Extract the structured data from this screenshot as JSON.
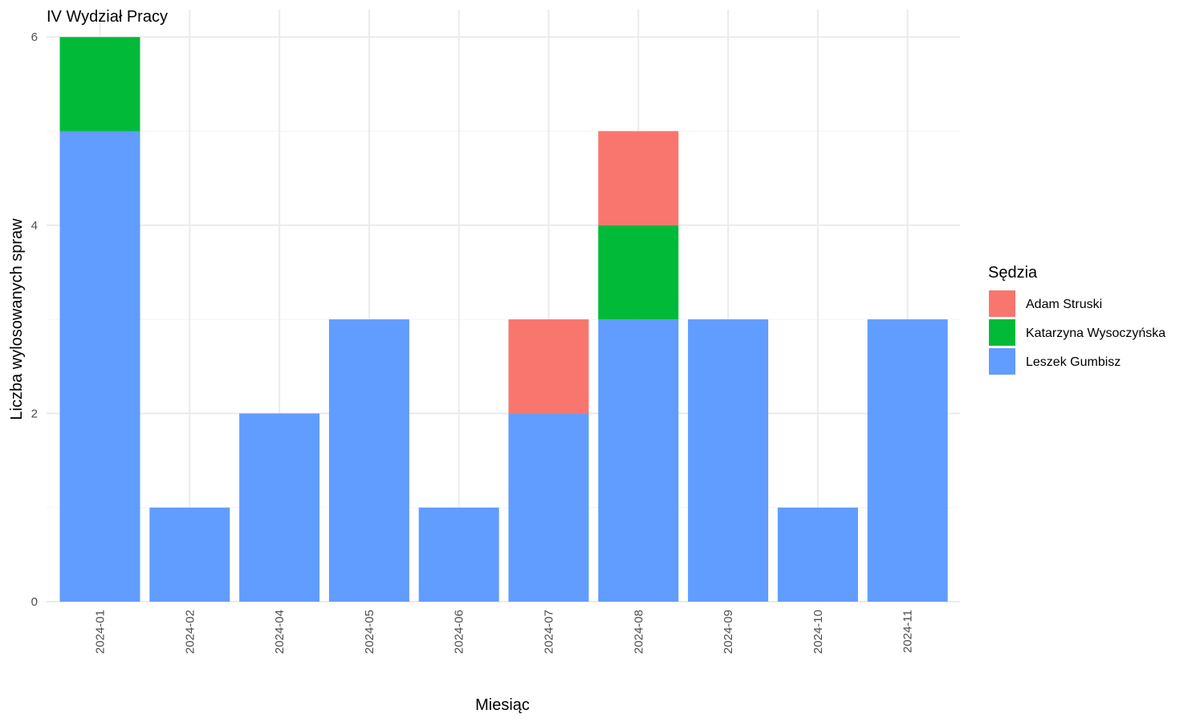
{
  "chart_data": {
    "type": "bar",
    "stacked": true,
    "title": "IV Wydział Pracy",
    "xlabel": "Miesiąc",
    "ylabel": "Liczba wylosowanych spraw",
    "ylim": [
      0,
      6
    ],
    "yticks": [
      0,
      2,
      4,
      6
    ],
    "grid": true,
    "legend_position": "right",
    "legend_title": "Sędzia",
    "categories": [
      "2024-01",
      "2024-02",
      "2024-04",
      "2024-05",
      "2024-06",
      "2024-07",
      "2024-08",
      "2024-09",
      "2024-10",
      "2024-11"
    ],
    "series": [
      {
        "name": "Adam Struski",
        "color": "#F8766D",
        "values": [
          0,
          0,
          0,
          0,
          0,
          1,
          1,
          0,
          0,
          0
        ]
      },
      {
        "name": "Katarzyna Wysoczyńska",
        "color": "#00BA38",
        "values": [
          1,
          0,
          0,
          0,
          0,
          0,
          1,
          0,
          0,
          0
        ]
      },
      {
        "name": "Leszek Gumbisz",
        "color": "#619CFF",
        "values": [
          5,
          1,
          2,
          3,
          1,
          2,
          3,
          3,
          1,
          3
        ]
      }
    ],
    "stack_order_bottom_to_top": [
      "Leszek Gumbisz",
      "Katarzyna Wysoczyńska",
      "Adam Struski"
    ]
  }
}
